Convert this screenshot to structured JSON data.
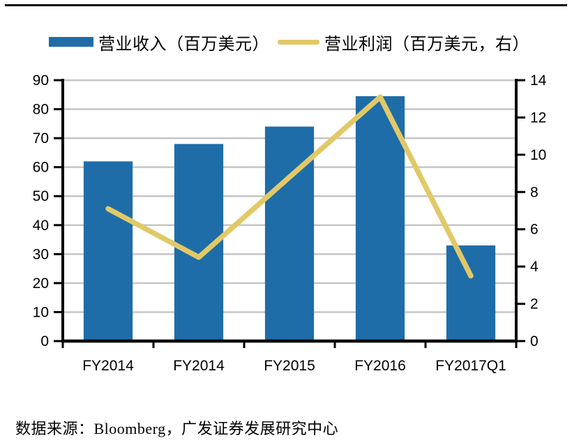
{
  "page": {
    "source_note": "数据来源：Bloomberg，广发证券发展研究中心"
  },
  "colors": {
    "bar": "#1F6DA8",
    "line": "#E2C967",
    "grid": "#C5C5C5",
    "axis": "#000000",
    "text": "#000000"
  },
  "chart_data": {
    "type": "bar",
    "subtype": "bar-line-combo",
    "categories": [
      "FY2014",
      "FY2014",
      "FY2015",
      "FY2016",
      "FY2017Q1"
    ],
    "series": [
      {
        "name": "营业收入（百万美元）",
        "type": "bar",
        "axis": "left",
        "color": "#1F6DA8",
        "values": [
          62,
          68,
          74,
          84.5,
          33
        ]
      },
      {
        "name": "营业利润（百万美元，右）",
        "type": "line",
        "axis": "right",
        "color": "#E2C967",
        "values": [
          7.1,
          4.5,
          8.8,
          13.1,
          3.5
        ]
      }
    ],
    "left_axis": {
      "min": 0,
      "max": 90,
      "step": 10,
      "tick_labels": [
        "0",
        "10",
        "20",
        "30",
        "40",
        "50",
        "60",
        "70",
        "80",
        "90"
      ]
    },
    "right_axis": {
      "min": 0,
      "max": 14,
      "step": 2,
      "tick_labels": [
        "0",
        "2",
        "4",
        "6",
        "8",
        "10",
        "12",
        "14"
      ]
    },
    "grid": "horizontal",
    "legend_position": "top",
    "title": "",
    "xlabel": "",
    "ylabel": ""
  }
}
